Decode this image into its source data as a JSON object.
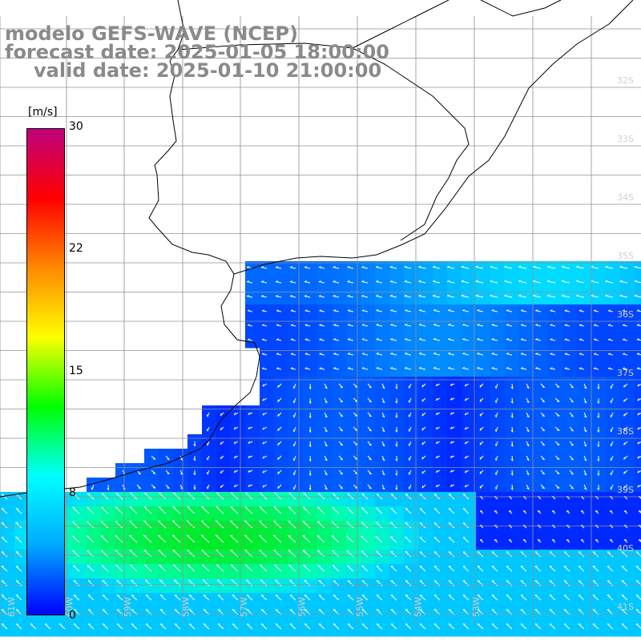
{
  "title": {
    "line1": "modelo GEFS-WAVE (NCEP)",
    "line2": "forecast date: 2025-01-05 18:00:00",
    "line3": "valid date: 2025-01-10 21:00:00"
  },
  "colorbar": {
    "unit": "[m/s]",
    "ticks": [
      "30",
      "22",
      "15",
      "8",
      "0"
    ],
    "min": 0,
    "max": 30,
    "colors": [
      "#0000ff",
      "#00aaff",
      "#00ffff",
      "#00ff00",
      "#ffff00",
      "#ff8800",
      "#ff0000",
      "#c0007f"
    ]
  },
  "map": {
    "latitude_labels": [
      "32S",
      "33S",
      "34S",
      "35S",
      "36S",
      "37S",
      "38S",
      "39S",
      "40S",
      "41S"
    ],
    "longitude_labels": [
      "61W",
      "60W",
      "59W",
      "58W",
      "57W",
      "56W",
      "55W",
      "54W",
      "53W"
    ],
    "land_color": "#ffffff",
    "coast_color": "#000000",
    "grid_color": "#808080",
    "arrow_color": "#ffffff"
  }
}
